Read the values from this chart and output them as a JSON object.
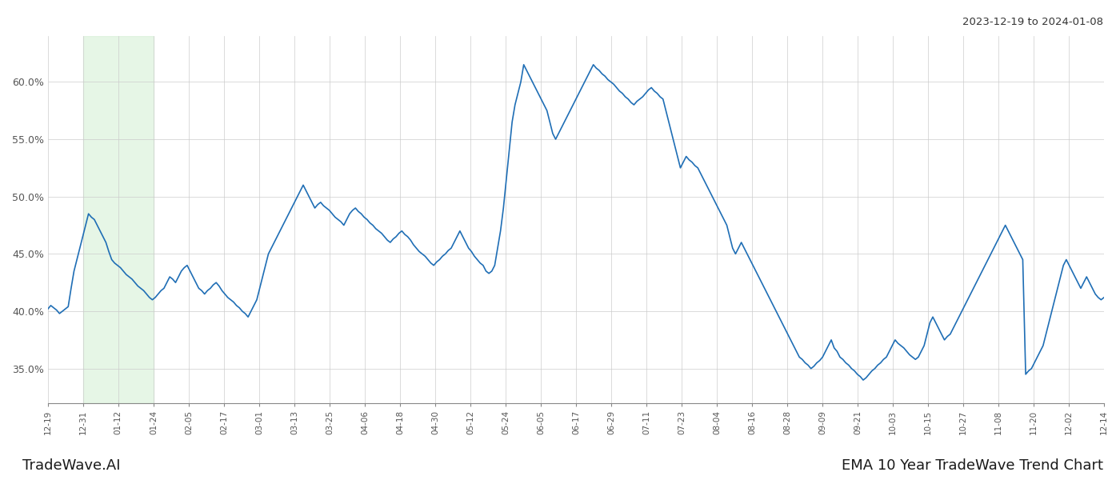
{
  "title_top_right": "2023-12-19 to 2024-01-08",
  "bottom_left": "TradeWave.AI",
  "bottom_right": "EMA 10 Year TradeWave Trend Chart",
  "line_color": "#1f6eb5",
  "line_width": 1.2,
  "background_color": "#ffffff",
  "grid_color": "#cccccc",
  "highlight_color": "#d6f0d6",
  "highlight_alpha": 0.6,
  "ylim": [
    32.0,
    64.0
  ],
  "yticks": [
    35.0,
    40.0,
    45.0,
    50.0,
    55.0,
    60.0
  ],
  "x_labels": [
    "12-19",
    "12-31",
    "01-12",
    "01-24",
    "02-05",
    "02-17",
    "03-01",
    "03-13",
    "03-25",
    "04-06",
    "04-18",
    "04-30",
    "05-12",
    "05-24",
    "06-05",
    "06-17",
    "06-29",
    "07-11",
    "07-23",
    "08-04",
    "08-16",
    "08-28",
    "09-09",
    "09-21",
    "10-03",
    "10-15",
    "10-27",
    "11-08",
    "11-20",
    "12-02",
    "12-14"
  ],
  "highlight_xstart": 8,
  "highlight_xend": 20,
  "n_total": 365,
  "values": [
    40.2,
    40.5,
    40.3,
    40.1,
    39.8,
    40.0,
    40.2,
    40.4,
    42.0,
    43.5,
    44.5,
    45.5,
    46.5,
    47.5,
    48.5,
    48.2,
    48.0,
    47.5,
    47.0,
    46.5,
    46.0,
    45.2,
    44.5,
    44.2,
    44.0,
    43.8,
    43.5,
    43.2,
    43.0,
    42.8,
    42.5,
    42.2,
    42.0,
    41.8,
    41.5,
    41.2,
    41.0,
    41.2,
    41.5,
    41.8,
    42.0,
    42.5,
    43.0,
    42.8,
    42.5,
    43.0,
    43.5,
    43.8,
    44.0,
    43.5,
    43.0,
    42.5,
    42.0,
    41.8,
    41.5,
    41.8,
    42.0,
    42.3,
    42.5,
    42.2,
    41.8,
    41.5,
    41.2,
    41.0,
    40.8,
    40.5,
    40.3,
    40.0,
    39.8,
    39.5,
    40.0,
    40.5,
    41.0,
    42.0,
    43.0,
    44.0,
    45.0,
    45.5,
    46.0,
    46.5,
    47.0,
    47.5,
    48.0,
    48.5,
    49.0,
    49.5,
    50.0,
    50.5,
    51.0,
    50.5,
    50.0,
    49.5,
    49.0,
    49.3,
    49.5,
    49.2,
    49.0,
    48.8,
    48.5,
    48.2,
    48.0,
    47.8,
    47.5,
    48.0,
    48.5,
    48.8,
    49.0,
    48.7,
    48.5,
    48.2,
    48.0,
    47.7,
    47.5,
    47.2,
    47.0,
    46.8,
    46.5,
    46.2,
    46.0,
    46.3,
    46.5,
    46.8,
    47.0,
    46.7,
    46.5,
    46.2,
    45.8,
    45.5,
    45.2,
    45.0,
    44.8,
    44.5,
    44.2,
    44.0,
    44.3,
    44.5,
    44.8,
    45.0,
    45.3,
    45.5,
    46.0,
    46.5,
    47.0,
    46.5,
    46.0,
    45.5,
    45.2,
    44.8,
    44.5,
    44.2,
    44.0,
    43.5,
    43.3,
    43.5,
    44.0,
    45.5,
    47.0,
    49.0,
    51.5,
    54.0,
    56.5,
    58.0,
    59.0,
    60.0,
    61.5,
    61.0,
    60.5,
    60.0,
    59.5,
    59.0,
    58.5,
    58.0,
    57.5,
    56.5,
    55.5,
    55.0,
    55.5,
    56.0,
    56.5,
    57.0,
    57.5,
    58.0,
    58.5,
    59.0,
    59.5,
    60.0,
    60.5,
    61.0,
    61.5,
    61.2,
    61.0,
    60.7,
    60.5,
    60.2,
    60.0,
    59.8,
    59.5,
    59.2,
    59.0,
    58.7,
    58.5,
    58.2,
    58.0,
    58.3,
    58.5,
    58.7,
    59.0,
    59.3,
    59.5,
    59.2,
    59.0,
    58.7,
    58.5,
    57.5,
    56.5,
    55.5,
    54.5,
    53.5,
    52.5,
    53.0,
    53.5,
    53.2,
    53.0,
    52.7,
    52.5,
    52.0,
    51.5,
    51.0,
    50.5,
    50.0,
    49.5,
    49.0,
    48.5,
    48.0,
    47.5,
    46.5,
    45.5,
    45.0,
    45.5,
    46.0,
    45.5,
    45.0,
    44.5,
    44.0,
    43.5,
    43.0,
    42.5,
    42.0,
    41.5,
    41.0,
    40.5,
    40.0,
    39.5,
    39.0,
    38.5,
    38.0,
    37.5,
    37.0,
    36.5,
    36.0,
    35.8,
    35.5,
    35.3,
    35.0,
    35.2,
    35.5,
    35.7,
    36.0,
    36.5,
    37.0,
    37.5,
    36.8,
    36.5,
    36.0,
    35.8,
    35.5,
    35.3,
    35.0,
    34.8,
    34.5,
    34.3,
    34.0,
    34.2,
    34.5,
    34.8,
    35.0,
    35.3,
    35.5,
    35.8,
    36.0,
    36.5,
    37.0,
    37.5,
    37.2,
    37.0,
    36.8,
    36.5,
    36.2,
    36.0,
    35.8,
    36.0,
    36.5,
    37.0,
    38.0,
    39.0,
    39.5,
    39.0,
    38.5,
    38.0,
    37.5,
    37.8,
    38.0,
    38.5,
    39.0,
    39.5,
    40.0,
    40.5,
    41.0,
    41.5,
    42.0,
    42.5,
    43.0,
    43.5,
    44.0,
    44.5,
    45.0,
    45.5,
    46.0,
    46.5,
    47.0,
    47.5,
    47.0,
    46.5,
    46.0,
    45.5,
    45.0,
    44.5,
    34.5,
    34.8,
    35.0,
    35.5,
    36.0,
    36.5,
    37.0,
    38.0,
    39.0,
    40.0,
    41.0,
    42.0,
    43.0,
    44.0,
    44.5,
    44.0,
    43.5,
    43.0,
    42.5,
    42.0,
    42.5,
    43.0,
    42.5,
    42.0,
    41.5,
    41.2,
    41.0,
    41.2
  ]
}
